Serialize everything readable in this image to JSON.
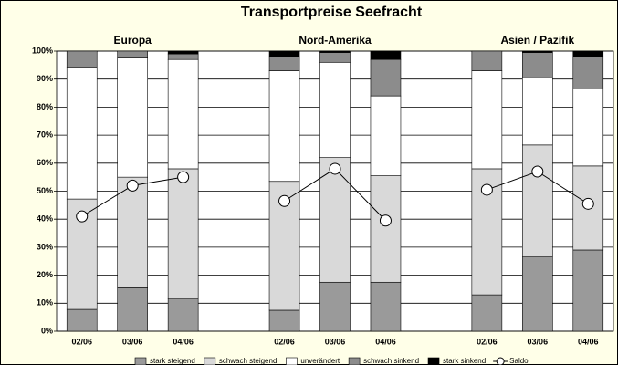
{
  "chart_data": {
    "type": "bar",
    "stacked": true,
    "title": "Transportpreise Seefracht",
    "groups": [
      "Europa",
      "Nord-Amerika",
      "Asien / Pazifik"
    ],
    "categories": [
      "02/06",
      "03/06",
      "04/06",
      null,
      "02/06",
      "03/06",
      "04/06",
      null,
      "02/06",
      "03/06",
      "04/06"
    ],
    "series": [
      {
        "name": "stark steigend",
        "color": "#9a9a9a",
        "values": [
          7.8,
          15.5,
          11.5,
          null,
          7.5,
          17.5,
          17.5,
          null,
          13,
          26.5,
          29
        ]
      },
      {
        "name": "schwach steigend",
        "color": "#d9d9d9",
        "values": [
          39.4,
          39.5,
          46.5,
          null,
          46,
          44.5,
          38,
          null,
          45,
          40,
          30
        ]
      },
      {
        "name": "unverändert",
        "color": "#ffffff",
        "values": [
          47,
          42.5,
          39,
          null,
          39.5,
          34,
          28.5,
          null,
          35,
          24,
          27.5
        ]
      },
      {
        "name": "schwach sinkend",
        "color": "#8c8c8c",
        "values": [
          5.8,
          2.5,
          2,
          null,
          5,
          3.5,
          13,
          null,
          7,
          9,
          11.5
        ]
      },
      {
        "name": "stark sinkend",
        "color": "#000000",
        "values": [
          0,
          0,
          1,
          null,
          2,
          0.5,
          3,
          null,
          0,
          0.5,
          2
        ]
      },
      {
        "name": "Saldo",
        "type": "line",
        "color": "#000000",
        "values": [
          41,
          52,
          55,
          null,
          46.5,
          58,
          39.5,
          null,
          50.5,
          57,
          45.5
        ]
      }
    ],
    "ylim": [
      0,
      100
    ],
    "yticks": [
      {
        "value": 0,
        "label": "0%"
      },
      {
        "value": 10,
        "label": "10%"
      },
      {
        "value": 20,
        "label": "20%"
      },
      {
        "value": 30,
        "label": "30%"
      },
      {
        "value": 40,
        "label": "40%"
      },
      {
        "value": 50,
        "label": "50%"
      },
      {
        "value": 60,
        "label": "60%"
      },
      {
        "value": 70,
        "label": "70%"
      },
      {
        "value": 80,
        "label": "80%"
      },
      {
        "value": 90,
        "label": "90%"
      },
      {
        "value": 100,
        "label": "100%"
      }
    ],
    "grid": true
  }
}
